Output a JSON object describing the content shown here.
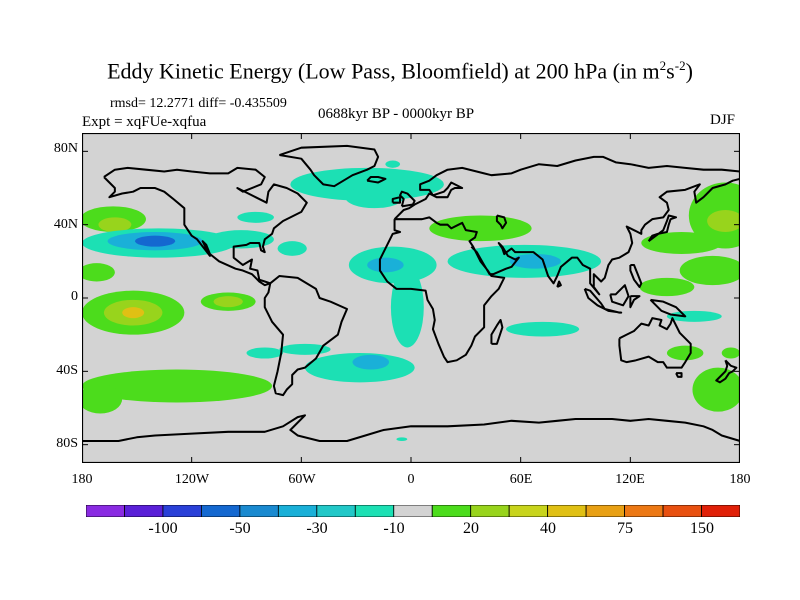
{
  "title": {
    "main": "Eddy Kinetic Energy (Low Pass, Bloomfield) at 200 hPa (in m",
    "sup1": "2",
    "mid": "s",
    "sup2": "-2",
    "end": ")"
  },
  "stats": "rmsd= 12.2771 diff= -0.435509",
  "experiment": "Expt = xqFUe-xqfua",
  "period": "0688kyr BP - 0000kyr BP",
  "season": "DJF",
  "axes": {
    "y_ticks": [
      "80N",
      "40N",
      "0",
      "40S",
      "80S"
    ],
    "y_values": [
      80,
      40,
      0,
      -40,
      -80
    ],
    "x_ticks": [
      "180",
      "120W",
      "60W",
      "0",
      "60E",
      "120E",
      "180"
    ],
    "x_values": [
      -180,
      -120,
      -60,
      0,
      60,
      120,
      180
    ]
  },
  "colorbar": {
    "colors": [
      "#8a2be2",
      "#5a20d8",
      "#2a40d8",
      "#1468d0",
      "#1a8ad0",
      "#1ab0d8",
      "#22c8c8",
      "#1ce0b4",
      "#d3d3d3",
      "#4cdc1c",
      "#98d41c",
      "#c8d41c",
      "#e0c014",
      "#e8a014",
      "#ec7814",
      "#e85010",
      "#e02008"
    ],
    "labels": [
      "-100",
      "-50",
      "-30",
      "-10",
      "20",
      "40",
      "75",
      "150"
    ],
    "label_slots": [
      2,
      4,
      6,
      8,
      10,
      12,
      14,
      16
    ]
  },
  "field": {
    "background": "#d3d3d3",
    "regions": [
      {
        "lon": -163,
        "lat": 43,
        "rlon": 18,
        "rlat": 7,
        "color": "#4cdc1c"
      },
      {
        "lon": -162,
        "lat": 40,
        "rlon": 9,
        "rlat": 4,
        "color": "#98d41c"
      },
      {
        "lon": -138,
        "lat": 30,
        "rlon": 42,
        "rlat": 8,
        "color": "#1ce0b4"
      },
      {
        "lon": -140,
        "lat": 31,
        "rlon": 26,
        "rlat": 5,
        "color": "#1ab0d8"
      },
      {
        "lon": -140,
        "lat": 31,
        "rlon": 11,
        "rlat": 3,
        "color": "#1468d0"
      },
      {
        "lon": -93,
        "lat": 32,
        "rlon": 18,
        "rlat": 5,
        "color": "#1ce0b4"
      },
      {
        "lon": -85,
        "lat": 44,
        "rlon": 10,
        "rlat": 3,
        "color": "#1ce0b4"
      },
      {
        "lon": -24,
        "lat": 62,
        "rlon": 42,
        "rlat": 9,
        "color": "#1ce0b4"
      },
      {
        "lon": -20,
        "lat": 55,
        "rlon": 16,
        "rlat": 6,
        "color": "#1ce0b4"
      },
      {
        "lon": -10,
        "lat": 18,
        "rlon": 24,
        "rlat": 10,
        "color": "#1ce0b4"
      },
      {
        "lon": -14,
        "lat": 18,
        "rlon": 10,
        "rlat": 4,
        "color": "#1ab0d8"
      },
      {
        "lon": -2,
        "lat": -5,
        "rlon": 9,
        "rlat": 22,
        "color": "#1ce0b4"
      },
      {
        "lon": -28,
        "lat": -38,
        "rlon": 30,
        "rlat": 8,
        "color": "#1ce0b4"
      },
      {
        "lon": -22,
        "lat": -35,
        "rlon": 10,
        "rlat": 4,
        "color": "#1ab0d8"
      },
      {
        "lon": 38,
        "lat": 38,
        "rlon": 28,
        "rlat": 7,
        "color": "#4cdc1c"
      },
      {
        "lon": 62,
        "lat": 20,
        "rlon": 42,
        "rlat": 9,
        "color": "#1ce0b4"
      },
      {
        "lon": 68,
        "lat": 20,
        "rlon": 14,
        "rlat": 4,
        "color": "#1ab0d8"
      },
      {
        "lon": 72,
        "lat": -17,
        "rlon": 20,
        "rlat": 4,
        "color": "#1ce0b4"
      },
      {
        "lon": 172,
        "lat": 45,
        "rlon": 20,
        "rlat": 18,
        "color": "#4cdc1c"
      },
      {
        "lon": 172,
        "lat": 42,
        "rlon": 10,
        "rlat": 6,
        "color": "#98d41c"
      },
      {
        "lon": 148,
        "lat": 30,
        "rlon": 22,
        "rlat": 6,
        "color": "#4cdc1c"
      },
      {
        "lon": 165,
        "lat": 15,
        "rlon": 18,
        "rlat": 8,
        "color": "#4cdc1c"
      },
      {
        "lon": 140,
        "lat": 6,
        "rlon": 15,
        "rlat": 5,
        "color": "#4cdc1c"
      },
      {
        "lon": -172,
        "lat": 14,
        "rlon": 10,
        "rlat": 5,
        "color": "#4cdc1c"
      },
      {
        "lon": -152,
        "lat": -8,
        "rlon": 28,
        "rlat": 12,
        "color": "#4cdc1c"
      },
      {
        "lon": -152,
        "lat": -8,
        "rlon": 16,
        "rlat": 7,
        "color": "#98d41c"
      },
      {
        "lon": -152,
        "lat": -8,
        "rlon": 6,
        "rlat": 3,
        "color": "#e0c014"
      },
      {
        "lon": -100,
        "lat": -2,
        "rlon": 15,
        "rlat": 5,
        "color": "#4cdc1c"
      },
      {
        "lon": -100,
        "lat": -2,
        "rlon": 8,
        "rlat": 3,
        "color": "#98d41c"
      },
      {
        "lon": -128,
        "lat": -48,
        "rlon": 52,
        "rlat": 9,
        "color": "#4cdc1c"
      },
      {
        "lon": -170,
        "lat": -55,
        "rlon": 12,
        "rlat": 8,
        "color": "#4cdc1c"
      },
      {
        "lon": 168,
        "lat": -50,
        "rlon": 14,
        "rlat": 12,
        "color": "#4cdc1c"
      },
      {
        "lon": 150,
        "lat": -30,
        "rlon": 10,
        "rlat": 4,
        "color": "#4cdc1c"
      },
      {
        "lon": 175,
        "lat": -30,
        "rlon": 5,
        "rlat": 3,
        "color": "#4cdc1c"
      },
      {
        "lon": 155,
        "lat": -10,
        "rlon": 15,
        "rlat": 3,
        "color": "#1ce0b4"
      },
      {
        "lon": -80,
        "lat": -30,
        "rlon": 10,
        "rlat": 3,
        "color": "#1ce0b4"
      },
      {
        "lon": -58,
        "lat": -28,
        "rlon": 14,
        "rlat": 3,
        "color": "#1ce0b4"
      },
      {
        "lon": -65,
        "lat": 27,
        "rlon": 8,
        "rlat": 4,
        "color": "#1ce0b4"
      },
      {
        "lon": -10,
        "lat": 73,
        "rlon": 4,
        "rlat": 2,
        "color": "#1ce0b4"
      },
      {
        "lon": -5,
        "lat": -77,
        "rlon": 3,
        "rlat": 1,
        "color": "#1ce0b4"
      }
    ]
  }
}
